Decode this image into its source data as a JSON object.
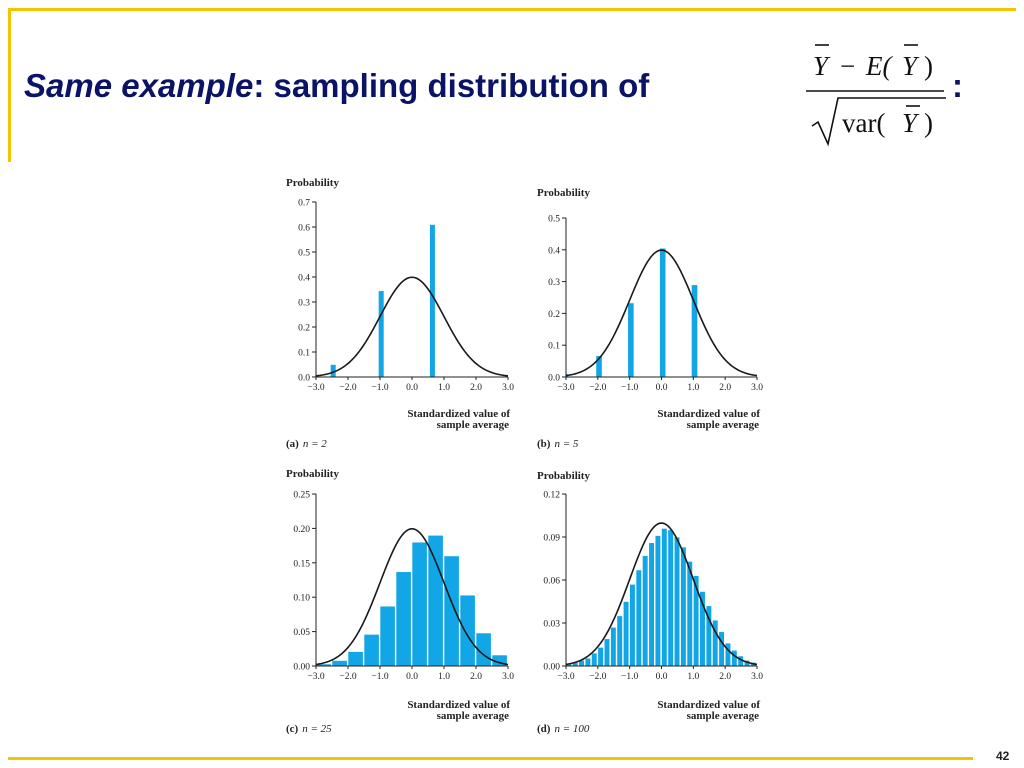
{
  "slide": {
    "title_em": "Same example",
    "title_rest": ":  sampling distribution of",
    "title_colon": ":",
    "formula": {
      "num_left": "Y",
      "num_op": "−",
      "num_e": "E(",
      "num_y": "Y",
      "num_close": ")",
      "den_var": "var(",
      "den_y": "Y",
      "den_close": ")"
    },
    "page_number": "42"
  },
  "colors": {
    "bar": "#12a6e6",
    "curve": "#1a1a1a",
    "title": "#0b1366",
    "frame": "#f2c500"
  },
  "chart_data": [
    {
      "type": "bar",
      "ylabel": "Probability",
      "xlabel": [
        "Standardized value of",
        "sample average"
      ],
      "caption_letter": "(a)",
      "caption_n": "n = 2",
      "xlim": [
        -3.0,
        3.0
      ],
      "ylim": [
        0,
        0.7
      ],
      "xticks": [
        "−3.0",
        "−2.0",
        "−1.0",
        "0.0",
        "1.0",
        "2.0",
        "3.0"
      ],
      "yticks": [
        "0.0",
        "0.1",
        "0.2",
        "0.3",
        "0.4",
        "0.5",
        "0.6",
        "0.7"
      ],
      "x": [
        -2.45,
        -0.95,
        0.65
      ],
      "values": [
        0.05,
        0.345,
        0.61
      ],
      "bar_width": 0.2,
      "curve": "standard-normal"
    },
    {
      "type": "bar",
      "ylabel": "Probability",
      "xlabel": [
        "Standardized value of",
        "sample average"
      ],
      "caption_letter": "(b)",
      "caption_n": "n = 5",
      "xlim": [
        -3.0,
        3.0
      ],
      "ylim": [
        0,
        0.5
      ],
      "xticks": [
        "−3.0",
        "−2.0",
        "−1.0",
        "0.0",
        "1.0",
        "2.0",
        "3.0"
      ],
      "yticks": [
        "0.0",
        "0.1",
        "0.2",
        "0.3",
        "0.4",
        "0.5"
      ],
      "x": [
        -3.0,
        -1.95,
        -0.95,
        0.05,
        1.05
      ],
      "values": [
        0.01,
        0.067,
        0.233,
        0.405,
        0.29
      ],
      "bar_width": 0.22,
      "curve": "standard-normal"
    },
    {
      "type": "bar",
      "ylabel": "Probability",
      "xlabel": [
        "Standardized value of",
        "sample average"
      ],
      "caption_letter": "(c)",
      "caption_n": "n = 25",
      "xlim": [
        -3.0,
        3.0
      ],
      "ylim": [
        0,
        0.25
      ],
      "xticks": [
        "−3.0",
        "−2.0",
        "−1.0",
        "0.0",
        "1.0",
        "2.0",
        "3.0"
      ],
      "yticks": [
        "0.00",
        "0.05",
        "0.10",
        "0.15",
        "0.20",
        "0.25"
      ],
      "x": [
        -2.75,
        -2.25,
        -1.75,
        -1.25,
        -0.75,
        -0.25,
        0.25,
        0.75,
        1.25,
        1.75,
        2.25,
        2.75
      ],
      "values": [
        0.003,
        0.008,
        0.021,
        0.046,
        0.087,
        0.137,
        0.18,
        0.19,
        0.16,
        0.103,
        0.048,
        0.016
      ],
      "bar_width": 0.5,
      "curve": "scaled-normal-0.5"
    },
    {
      "type": "bar",
      "ylabel": "Probability",
      "xlabel": [
        "Standardized value of",
        "sample average"
      ],
      "caption_letter": "(d)",
      "caption_n": "n = 100",
      "xlim": [
        -3.0,
        3.0
      ],
      "ylim": [
        0,
        0.12
      ],
      "xticks": [
        "−3.0",
        "−2.0",
        "−1.0",
        "0.0",
        "1.0",
        "2.0",
        "3.0"
      ],
      "yticks": [
        "0.00",
        "0.03",
        "0.06",
        "0.09",
        "0.12"
      ],
      "x": [
        -2.9,
        -2.7,
        -2.5,
        -2.3,
        -2.1,
        -1.9,
        -1.7,
        -1.5,
        -1.3,
        -1.1,
        -0.9,
        -0.7,
        -0.5,
        -0.3,
        -0.1,
        0.1,
        0.3,
        0.5,
        0.7,
        0.9,
        1.1,
        1.3,
        1.5,
        1.7,
        1.9,
        2.1,
        2.3,
        2.5,
        2.7,
        2.9
      ],
      "values": [
        0.0012,
        0.0025,
        0.004,
        0.0055,
        0.009,
        0.013,
        0.019,
        0.027,
        0.035,
        0.045,
        0.057,
        0.067,
        0.077,
        0.086,
        0.091,
        0.096,
        0.095,
        0.09,
        0.083,
        0.073,
        0.063,
        0.052,
        0.042,
        0.032,
        0.024,
        0.016,
        0.011,
        0.007,
        0.004,
        0.0025
      ],
      "bar_width": 0.2,
      "curve": "scaled-normal-0.25"
    }
  ]
}
